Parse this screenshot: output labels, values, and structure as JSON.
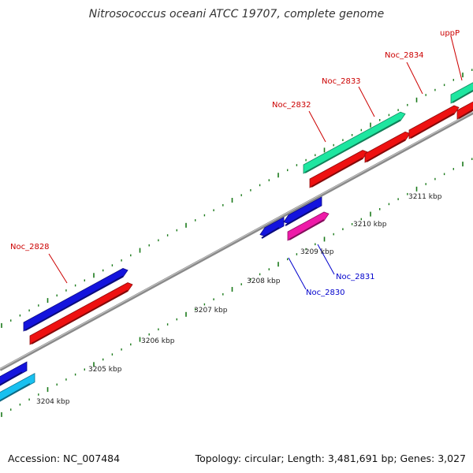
{
  "title": "Nitrosococcus oceani ATCC 19707, complete genome",
  "footer": {
    "accession": "Accession: NC_007484",
    "summary": "Topology: circular; Length: 3,481,691 bp; Genes: 3,027"
  },
  "colors": {
    "backbone": "#8a8a8a",
    "tick": "#1a7a1a",
    "forward_label": "#cc0000",
    "reverse_label": "#0000cc"
  },
  "kbp_ticks": [
    "3204 kbp",
    "3205 kbp",
    "3206 kbp",
    "3207 kbp",
    "3208 kbp",
    "3209 kbp",
    "3210 kbp",
    "3211 kbp"
  ],
  "genes": [
    {
      "name": "Noc_2828",
      "strand": "forward"
    },
    {
      "name": "Noc_2830",
      "strand": "reverse"
    },
    {
      "name": "Noc_2831",
      "strand": "reverse"
    },
    {
      "name": "Noc_2832",
      "strand": "forward"
    },
    {
      "name": "Noc_2833",
      "strand": "forward"
    },
    {
      "name": "Noc_2834",
      "strand": "forward"
    },
    {
      "name": "uppP",
      "strand": "forward"
    }
  ]
}
